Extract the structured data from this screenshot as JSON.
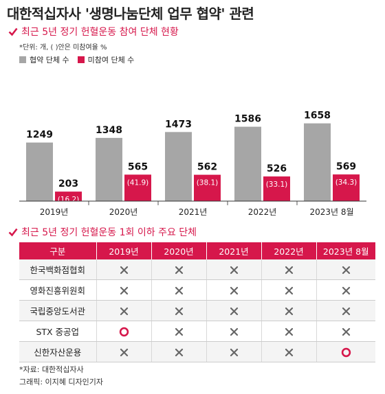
{
  "title": "대한적십자사 '생명나눔단체 업무 협약' 관련",
  "section1": {
    "heading": "최근 5년 정기 헌혈운동 참여 단체 현황",
    "unit_note": "*단위: 개, ( )안은 미참여율 %"
  },
  "colors": {
    "accent": "#d6174b",
    "gray": "#a6a6a6"
  },
  "chart_data": {
    "type": "bar",
    "categories": [
      "2019년",
      "2020년",
      "2021년",
      "2022년",
      "2023년 8월"
    ],
    "series": [
      {
        "name": "협약 단체 수",
        "values": [
          1249,
          1348,
          1473,
          1586,
          1658
        ],
        "color": "#a6a6a6"
      },
      {
        "name": "미참여 단체 수",
        "values": [
          203,
          565,
          562,
          526,
          569
        ],
        "color": "#d6174b"
      }
    ],
    "rate_labels": [
      "(16.2)",
      "(41.9)",
      "(38.1)",
      "(33.1)",
      "(34.3)"
    ],
    "ylim": [
      0,
      1800
    ]
  },
  "section2": {
    "heading": "최근 5년 정기 헌혈운동 1회 이하 주요 단체",
    "columns": [
      "구분",
      "2019년",
      "2020년",
      "2021년",
      "2022년",
      "2023년 8월"
    ],
    "rows": [
      {
        "name": "한국백화점협회",
        "marks": [
          "x",
          "x",
          "x",
          "x",
          "x"
        ]
      },
      {
        "name": "영화진흥위원회",
        "marks": [
          "x",
          "x",
          "x",
          "x",
          "x"
        ]
      },
      {
        "name": "국립중앙도서관",
        "marks": [
          "x",
          "x",
          "x",
          "x",
          "x"
        ]
      },
      {
        "name": "STX 중공업",
        "marks": [
          "o",
          "x",
          "x",
          "x",
          "x"
        ]
      },
      {
        "name": "신한자산운용",
        "marks": [
          "x",
          "x",
          "x",
          "x",
          "o"
        ]
      }
    ]
  },
  "footer": {
    "source": "*자료: 대한적십자사",
    "credit": "그래픽: 이지혜 디자인기자"
  }
}
